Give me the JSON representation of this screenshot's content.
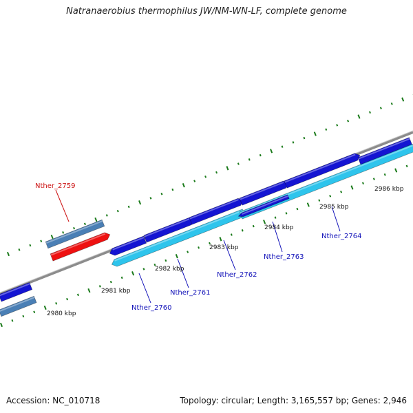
{
  "title": "Natranaerobius thermophilus JW/NM-WN-LF, complete genome",
  "footer": {
    "accession": "Accession: NC_010718",
    "summary": "Topology: circular; Length: 3,165,557 bp; Genes: 2,946"
  },
  "colors": {
    "backbone": "#8c8c8c",
    "tick": "#1a7a1a",
    "label_blue": "#1010b8",
    "label_red": "#cc1111",
    "gene_blue": "#1414d2",
    "gene_cyan": "#2ec4ec",
    "gene_steel": "#4a7fb5",
    "gene_red": "#ee1111"
  },
  "kbp_labels": [
    "2980 kbp",
    "2981 kbp",
    "2982 kbp",
    "2983 kbp",
    "2984 kbp",
    "2985 kbp",
    "2986 kbp"
  ],
  "gene_labels": [
    {
      "text": "Nther_2759",
      "color": "red"
    },
    {
      "text": "Nther_2760",
      "color": "blue"
    },
    {
      "text": "Nther_2761",
      "color": "blue"
    },
    {
      "text": "Nther_2762",
      "color": "blue"
    },
    {
      "text": "Nther_2763",
      "color": "blue"
    },
    {
      "text": "Nther_2764",
      "color": "blue"
    }
  ]
}
